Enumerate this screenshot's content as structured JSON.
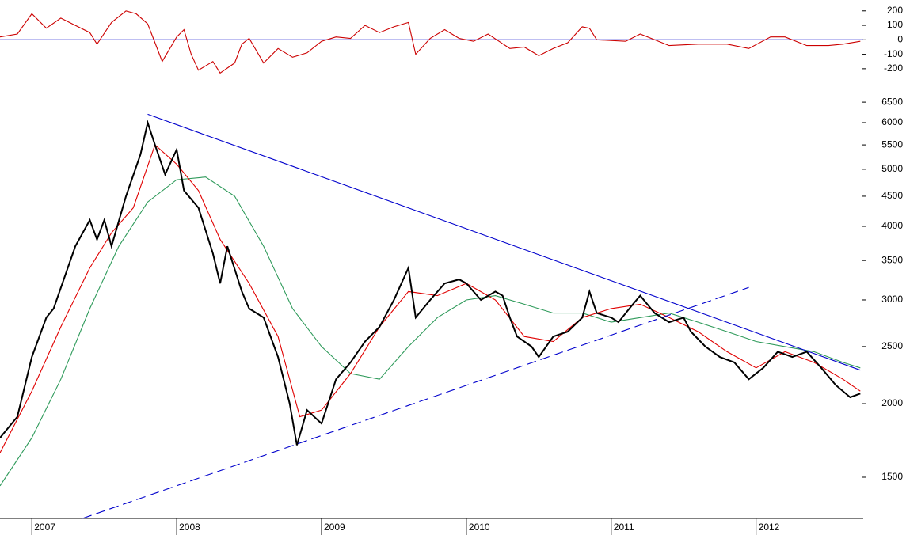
{
  "chart_data": [
    {
      "type": "line",
      "xlim": [
        2006.78,
        2012.74
      ],
      "ylim": [
        -250,
        270
      ],
      "yticks": [
        200,
        100,
        0,
        -100,
        -200
      ],
      "series": [
        {
          "color": "#cc0000",
          "x": [
            2006.78,
            2006.9,
            2007.0,
            2007.1,
            2007.2,
            2007.3,
            2007.4,
            2007.45,
            2007.55,
            2007.65,
            2007.72,
            2007.8,
            2007.85,
            2007.9,
            2008.0,
            2008.05,
            2008.1,
            2008.15,
            2008.25,
            2008.3,
            2008.4,
            2008.45,
            2008.5,
            2008.6,
            2008.7,
            2008.8,
            2008.9,
            2009.0,
            2009.1,
            2009.2,
            2009.3,
            2009.4,
            2009.5,
            2009.6,
            2009.65,
            2009.75,
            2009.85,
            2009.95,
            2010.05,
            2010.15,
            2010.3,
            2010.4,
            2010.5,
            2010.6,
            2010.7,
            2010.8,
            2010.85,
            2010.9,
            2011.1,
            2011.2,
            2011.3,
            2011.4,
            2011.6,
            2011.8,
            2011.95,
            2012.1,
            2012.2,
            2012.35,
            2012.5,
            2012.6,
            2012.72
          ],
          "values": [
            20,
            40,
            180,
            80,
            150,
            100,
            50,
            -30,
            120,
            200,
            180,
            110,
            -20,
            -150,
            20,
            70,
            -100,
            -210,
            -150,
            -230,
            -160,
            -30,
            10,
            -160,
            -60,
            -120,
            -90,
            -10,
            20,
            10,
            100,
            50,
            90,
            120,
            -100,
            10,
            70,
            10,
            -10,
            40,
            -60,
            -50,
            -110,
            -60,
            -20,
            90,
            80,
            0,
            -10,
            40,
            0,
            -40,
            -30,
            -30,
            -60,
            20,
            20,
            -40,
            -40,
            -30,
            -10
          ]
        }
      ]
    },
    {
      "type": "line",
      "log_scale": true,
      "xlim": [
        2006.78,
        2012.74
      ],
      "ylim": [
        1277,
        6790
      ],
      "yticks": [
        1500,
        2000,
        2500,
        3000,
        3500,
        4000,
        4500,
        5000,
        5500,
        6000,
        6500
      ],
      "xticks": [
        2007,
        2008,
        2009,
        2010,
        2011,
        2012
      ],
      "series": [
        {
          "color": "#2e9a5a",
          "x": [
            2006.78,
            2007.0,
            2007.2,
            2007.4,
            2007.6,
            2007.8,
            2008.0,
            2008.2,
            2008.4,
            2008.6,
            2008.8,
            2009.0,
            2009.2,
            2009.4,
            2009.6,
            2009.8,
            2010.0,
            2010.2,
            2010.4,
            2010.6,
            2010.8,
            2011.0,
            2011.2,
            2011.4,
            2011.6,
            2011.8,
            2012.0,
            2012.2,
            2012.4,
            2012.6,
            2012.72
          ],
          "values": [
            1450,
            1750,
            2200,
            2900,
            3700,
            4400,
            4800,
            4850,
            4500,
            3700,
            2900,
            2500,
            2250,
            2200,
            2500,
            2800,
            3000,
            3050,
            2950,
            2850,
            2850,
            2750,
            2800,
            2850,
            2750,
            2650,
            2550,
            2500,
            2450,
            2350,
            2300
          ]
        },
        {
          "color": "#e00000",
          "x": [
            2006.78,
            2007.0,
            2007.2,
            2007.4,
            2007.55,
            2007.7,
            2007.85,
            2008.0,
            2008.15,
            2008.3,
            2008.5,
            2008.7,
            2008.85,
            2009.0,
            2009.2,
            2009.4,
            2009.6,
            2009.8,
            2010.0,
            2010.2,
            2010.4,
            2010.6,
            2010.8,
            2011.0,
            2011.2,
            2011.4,
            2011.6,
            2011.8,
            2012.0,
            2012.2,
            2012.4,
            2012.6,
            2012.72
          ],
          "values": [
            1650,
            2100,
            2700,
            3400,
            3900,
            4300,
            5500,
            5100,
            4600,
            3800,
            3200,
            2600,
            1900,
            1950,
            2250,
            2700,
            3100,
            3050,
            3200,
            3000,
            2600,
            2550,
            2800,
            2900,
            2950,
            2800,
            2650,
            2450,
            2300,
            2450,
            2350,
            2200,
            2100
          ]
        },
        {
          "color": "#000000",
          "width": 2,
          "x": [
            2006.78,
            2006.9,
            2007.0,
            2007.1,
            2007.15,
            2007.3,
            2007.4,
            2007.45,
            2007.5,
            2007.55,
            2007.65,
            2007.75,
            2007.8,
            2007.85,
            2007.92,
            2008.0,
            2008.05,
            2008.15,
            2008.25,
            2008.3,
            2008.35,
            2008.45,
            2008.5,
            2008.6,
            2008.7,
            2008.78,
            2008.83,
            2008.9,
            2009.0,
            2009.1,
            2009.2,
            2009.3,
            2009.4,
            2009.5,
            2009.6,
            2009.65,
            2009.75,
            2009.85,
            2009.95,
            2010.0,
            2010.1,
            2010.2,
            2010.25,
            2010.3,
            2010.35,
            2010.45,
            2010.5,
            2010.6,
            2010.7,
            2010.8,
            2010.85,
            2010.9,
            2011.0,
            2011.05,
            2011.15,
            2011.2,
            2011.3,
            2011.4,
            2011.5,
            2011.55,
            2011.65,
            2011.75,
            2011.85,
            2011.95,
            2012.05,
            2012.15,
            2012.25,
            2012.35,
            2012.45,
            2012.55,
            2012.65,
            2012.72
          ],
          "values": [
            1750,
            1900,
            2400,
            2800,
            2900,
            3700,
            4100,
            3800,
            4100,
            3700,
            4500,
            5300,
            6000,
            5500,
            4900,
            5400,
            4600,
            4300,
            3600,
            3200,
            3700,
            3100,
            2900,
            2800,
            2400,
            2000,
            1700,
            1950,
            1850,
            2200,
            2350,
            2550,
            2700,
            3000,
            3400,
            2800,
            3000,
            3200,
            3250,
            3200,
            3000,
            3100,
            3050,
            2800,
            2600,
            2500,
            2400,
            2600,
            2650,
            2800,
            3100,
            2850,
            2800,
            2750,
            2950,
            3050,
            2850,
            2750,
            2800,
            2650,
            2500,
            2400,
            2350,
            2200,
            2300,
            2450,
            2400,
            2450,
            2300,
            2150,
            2050,
            2080
          ]
        },
        {
          "color": "#0000cc",
          "x": [
            2007.8,
            2012.72
          ],
          "values": [
            6200,
            2280
          ]
        },
        {
          "color": "#0000cc",
          "dashed": true,
          "x": [
            2007.35,
            2011.95
          ],
          "values": [
            1277,
            3150
          ]
        }
      ]
    }
  ]
}
